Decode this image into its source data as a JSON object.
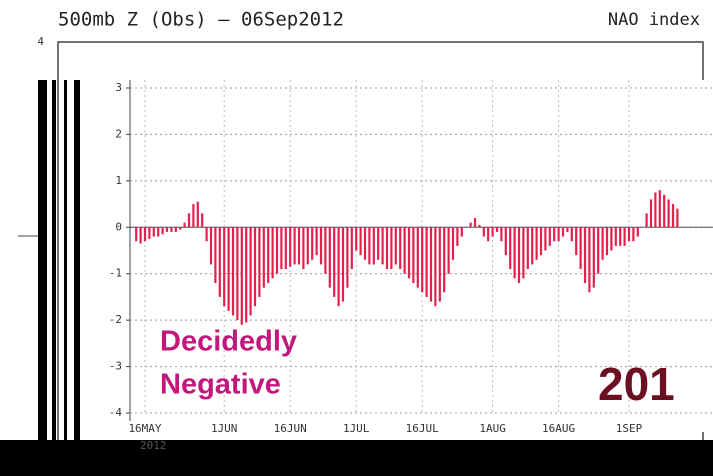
{
  "chart_data": {
    "type": "bar",
    "title": "500mb Z (Obs) — 06Sep2012",
    "subtitle": "NAO index",
    "outer_tick": 4,
    "year_label": "2012",
    "annotations": [
      "Decidedly",
      "Negative",
      "201"
    ],
    "color": "#e3204c",
    "grid": true,
    "ylim": [
      -4,
      3
    ],
    "yticks": [
      3,
      2,
      1,
      0,
      -1,
      -2,
      -3,
      -4
    ],
    "categories": [
      null,
      null,
      "16MAY",
      null,
      null,
      null,
      null,
      null,
      null,
      null,
      null,
      null,
      null,
      null,
      null,
      null,
      null,
      null,
      null,
      null,
      "1JUN",
      null,
      null,
      null,
      null,
      null,
      null,
      null,
      null,
      null,
      null,
      null,
      null,
      null,
      null,
      "16JUN",
      null,
      null,
      null,
      null,
      null,
      null,
      null,
      null,
      null,
      null,
      null,
      null,
      null,
      null,
      "1JUL",
      null,
      null,
      null,
      null,
      null,
      null,
      null,
      null,
      null,
      null,
      null,
      null,
      null,
      null,
      "16JUL",
      null,
      null,
      null,
      null,
      null,
      null,
      null,
      null,
      null,
      null,
      null,
      null,
      null,
      null,
      null,
      "1AUG",
      null,
      null,
      null,
      null,
      null,
      null,
      null,
      null,
      null,
      null,
      null,
      null,
      null,
      null,
      "16AUG",
      null,
      null,
      null,
      null,
      null,
      null,
      null,
      null,
      null,
      null,
      null,
      null,
      null,
      null,
      null,
      "1SEP",
      null,
      null,
      null,
      null,
      null,
      null,
      null,
      null,
      null,
      null,
      null
    ],
    "values": [
      -0.3,
      -0.35,
      -0.3,
      -0.25,
      -0.2,
      -0.2,
      -0.15,
      -0.1,
      -0.1,
      -0.1,
      -0.05,
      0.1,
      0.3,
      0.5,
      0.55,
      0.3,
      -0.3,
      -0.8,
      -1.2,
      -1.5,
      -1.7,
      -1.8,
      -1.9,
      -2.0,
      -2.1,
      -2.05,
      -1.9,
      -1.7,
      -1.5,
      -1.3,
      -1.2,
      -1.1,
      -1.0,
      -0.9,
      -0.9,
      -0.85,
      -0.8,
      -0.8,
      -0.9,
      -0.8,
      -0.7,
      -0.6,
      -0.8,
      -1.0,
      -1.3,
      -1.5,
      -1.7,
      -1.6,
      -1.3,
      -0.9,
      -0.5,
      -0.6,
      -0.7,
      -0.8,
      -0.8,
      -0.7,
      -0.8,
      -0.9,
      -0.9,
      -0.8,
      -0.9,
      -1.0,
      -1.1,
      -1.2,
      -1.3,
      -1.4,
      -1.5,
      -1.6,
      -1.7,
      -1.6,
      -1.4,
      -1.0,
      -0.7,
      -0.4,
      -0.2,
      0.0,
      0.1,
      0.2,
      0.05,
      -0.2,
      -0.3,
      -0.2,
      -0.1,
      -0.3,
      -0.6,
      -0.9,
      -1.1,
      -1.2,
      -1.1,
      -0.9,
      -0.8,
      -0.7,
      -0.6,
      -0.5,
      -0.4,
      -0.3,
      -0.3,
      -0.2,
      -0.1,
      -0.3,
      -0.6,
      -0.9,
      -1.2,
      -1.4,
      -1.3,
      -1.0,
      -0.7,
      -0.6,
      -0.5,
      -0.4,
      -0.4,
      -0.4,
      -0.3,
      -0.3,
      -0.2,
      0.0,
      0.3,
      0.6,
      0.75,
      0.8,
      0.7,
      0.6,
      0.5,
      0.4
    ]
  }
}
